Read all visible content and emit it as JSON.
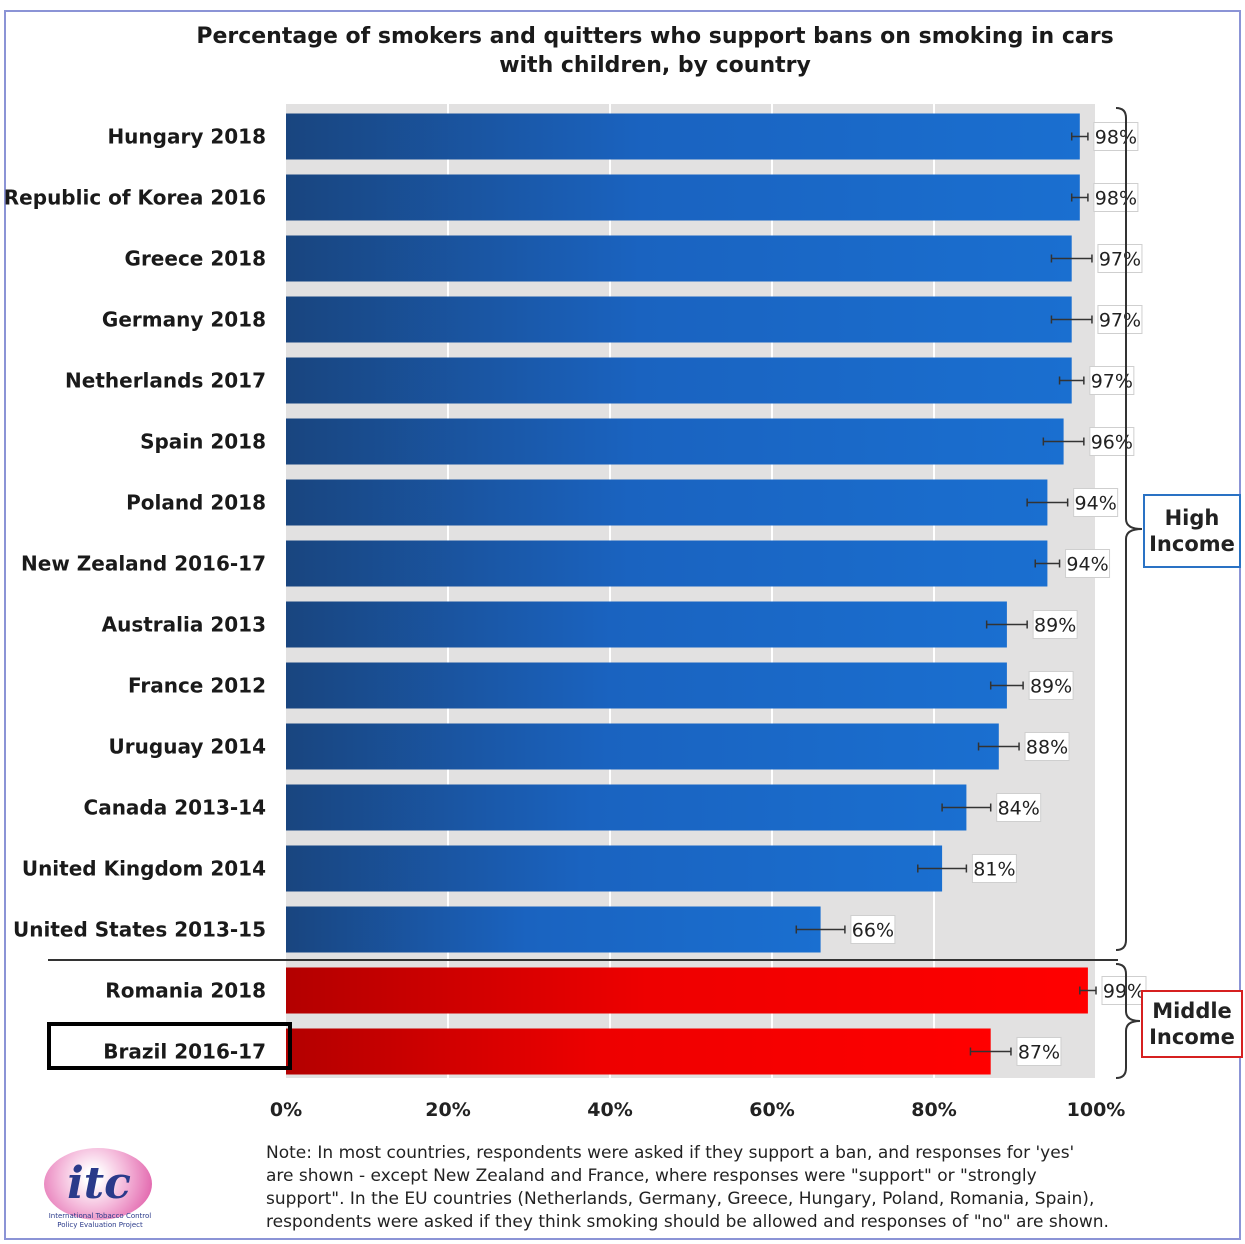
{
  "title_line1": "Percentage of smokers and quitters who support bans on smoking in cars",
  "title_line2": "with children, by country",
  "chart_data": {
    "type": "bar",
    "orientation": "horizontal",
    "title": "Percentage of smokers and quitters who support bans on smoking in cars with children, by country",
    "xlim": [
      0,
      100
    ],
    "x_ticks": [
      "0%",
      "20%",
      "40%",
      "60%",
      "80%",
      "100%"
    ],
    "grid": true,
    "categories": [
      "Hungary 2018",
      "Republic of Korea 2016",
      "Greece 2018",
      "Germany 2018",
      "Netherlands 2017",
      "Spain 2018",
      "Poland 2018",
      "New Zealand 2016-17",
      "Australia 2013",
      "France 2012",
      "Uruguay 2014",
      "Canada 2013-14",
      "United Kingdom 2014",
      "United States 2013-15",
      "Romania 2018",
      "Brazil 2016-17"
    ],
    "values": [
      98,
      98,
      97,
      97,
      97,
      96,
      94,
      94,
      89,
      89,
      88,
      84,
      81,
      66,
      99,
      87
    ],
    "value_labels": [
      "98%",
      "98%",
      "97%",
      "97%",
      "97%",
      "96%",
      "94%",
      "94%",
      "89%",
      "89%",
      "88%",
      "84%",
      "81%",
      "66%",
      "99%",
      "87%"
    ],
    "error_margin": [
      1,
      1,
      2.5,
      2.5,
      1.5,
      2.5,
      2.5,
      1.5,
      2.5,
      2,
      2.5,
      3,
      3,
      3,
      1,
      2.5
    ],
    "groups": [
      {
        "label_line1": "High",
        "label_line2": "Income",
        "color": "#1a63c0",
        "color_dark": "#19457f",
        "count": 14
      },
      {
        "label_line1": "Middle",
        "label_line2": "Income",
        "color": "#ff0000",
        "color_dark": "#b30000",
        "count": 2
      }
    ],
    "highlighted_category": "Brazil 2016-17"
  },
  "note_lines": [
    "Note: In most countries, respondents were asked if they support a ban, and responses for 'yes'",
    "are shown - except New Zealand and France, where responses were \"support\" or \"strongly",
    "support\". In the EU countries (Netherlands, Germany, Greece, Hungary, Poland, Romania, Spain),",
    "respondents were asked if they think smoking should be allowed and responses of \"no\" are shown."
  ],
  "logo": {
    "text": "itc",
    "sub_line1": "International Tobacco Control",
    "sub_line2": "Policy Evaluation Project"
  }
}
